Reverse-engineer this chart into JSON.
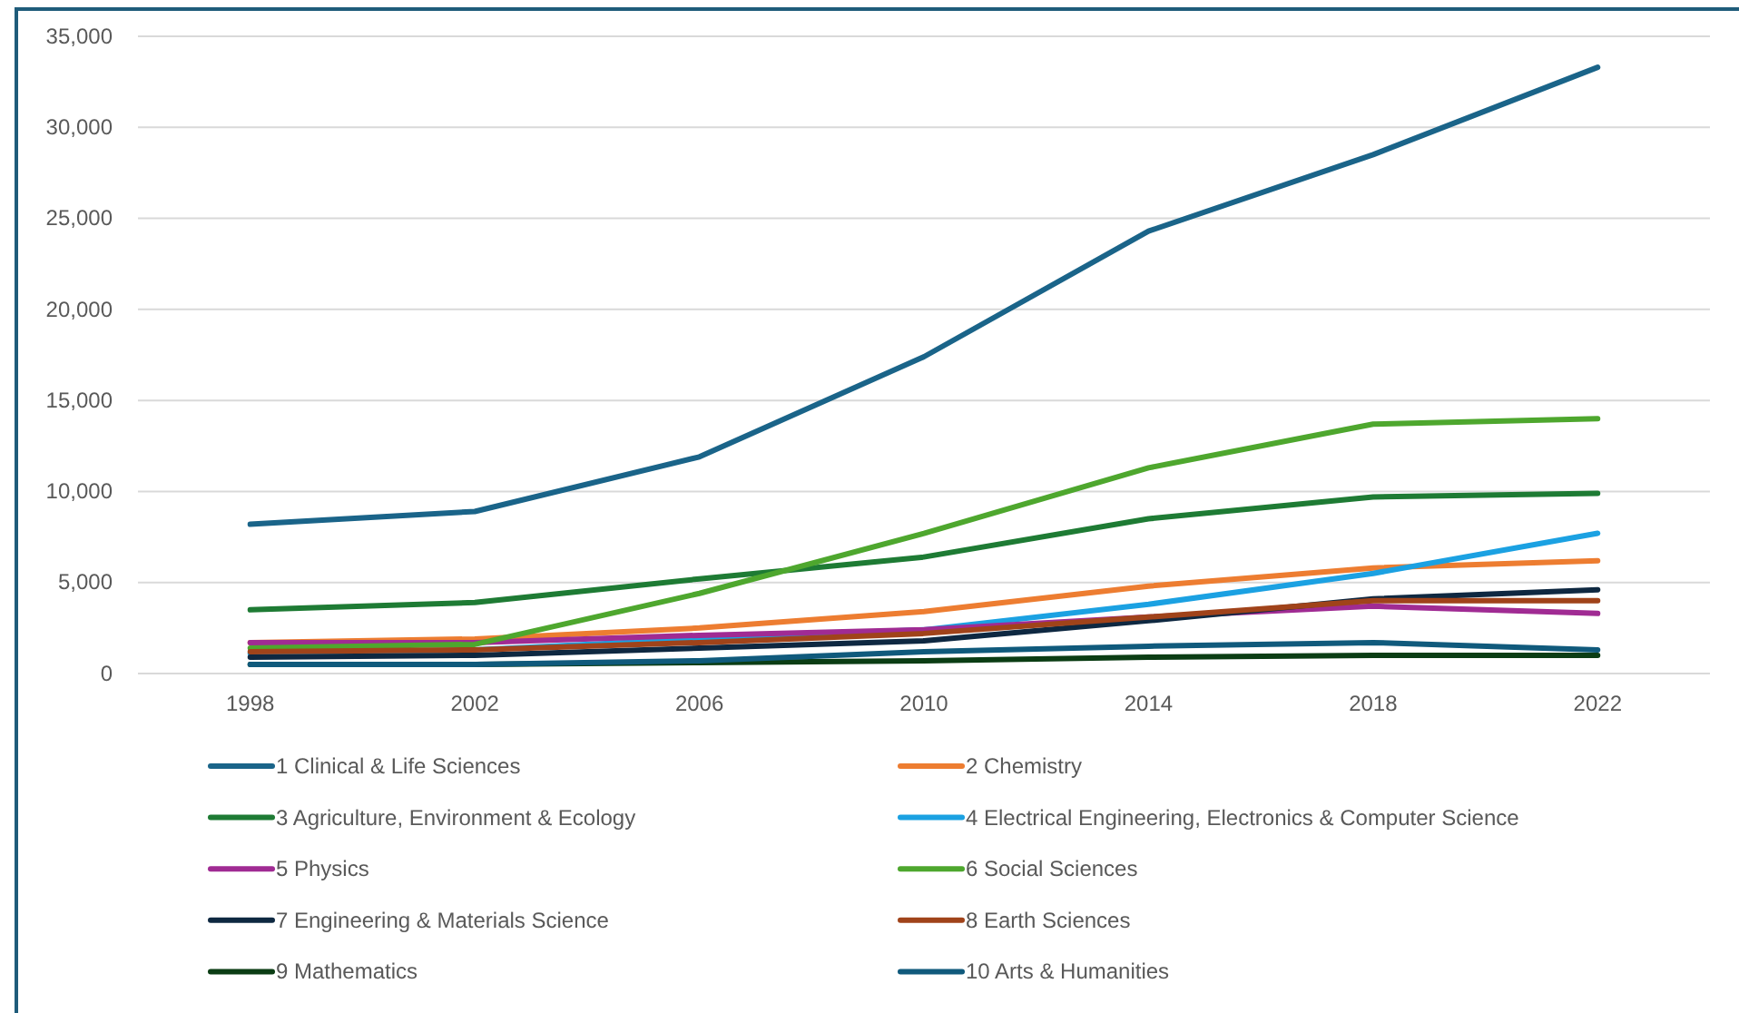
{
  "chart_data": {
    "type": "line",
    "categories": [
      "1998",
      "2002",
      "2006",
      "2010",
      "2014",
      "2018",
      "2022"
    ],
    "ylim": [
      0,
      35000
    ],
    "yticks": [
      {
        "value": 0,
        "label": "0"
      },
      {
        "value": 5000,
        "label": "5,000"
      },
      {
        "value": 10000,
        "label": "10,000"
      },
      {
        "value": 15000,
        "label": "15,000"
      },
      {
        "value": 20000,
        "label": "20,000"
      },
      {
        "value": 25000,
        "label": "25,000"
      },
      {
        "value": 30000,
        "label": "30,000"
      },
      {
        "value": 35000,
        "label": "35,000"
      }
    ],
    "grid": "y",
    "legend": "bottom",
    "marker": "none",
    "line_style": "solid",
    "series": [
      {
        "name": "1 Clinical & Life Sciences",
        "color": "#1a6489",
        "values": [
          8200,
          8900,
          11900,
          17400,
          24300,
          28500,
          33300
        ]
      },
      {
        "name": "2 Chemistry",
        "color": "#ed7d31",
        "values": [
          1700,
          1900,
          2500,
          3400,
          4800,
          5800,
          6200
        ]
      },
      {
        "name": "3 Agriculture, Environment & Ecology",
        "color": "#1e7b34",
        "values": [
          3500,
          3900,
          5200,
          6400,
          8500,
          9700,
          9900
        ]
      },
      {
        "name": "4 Electrical Engineering, Electronics & Computer Science",
        "color": "#1ba1e2",
        "values": [
          1100,
          1300,
          1900,
          2400,
          3800,
          5500,
          7700
        ]
      },
      {
        "name": "5 Physics",
        "color": "#a02b93",
        "values": [
          1700,
          1700,
          2100,
          2400,
          3100,
          3700,
          3300
        ]
      },
      {
        "name": "6 Social Sciences",
        "color": "#4ea72e",
        "values": [
          1400,
          1600,
          4400,
          7700,
          11300,
          13700,
          14000
        ]
      },
      {
        "name": "7 Engineering & Materials Science",
        "color": "#0e2841",
        "values": [
          900,
          1000,
          1400,
          1800,
          2900,
          4100,
          4600
        ]
      },
      {
        "name": "8 Earth Sciences",
        "color": "#a0431a",
        "values": [
          1200,
          1300,
          1700,
          2200,
          3100,
          4000,
          4000
        ]
      },
      {
        "name": "9 Mathematics",
        "color": "#0b3d14",
        "values": [
          500,
          500,
          600,
          700,
          900,
          1000,
          1000
        ]
      },
      {
        "name": "10 Arts & Humanities",
        "color": "#105a7c",
        "values": [
          500,
          500,
          700,
          1200,
          1500,
          1700,
          1300
        ]
      }
    ]
  }
}
